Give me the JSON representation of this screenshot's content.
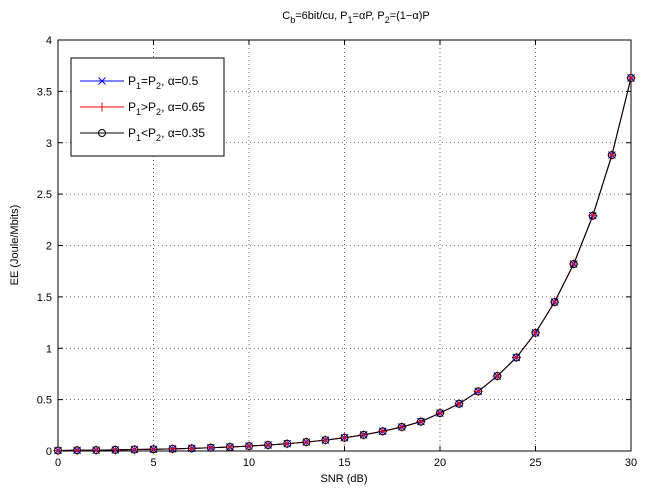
{
  "chart_data": {
    "type": "line",
    "title": "C_b=6bit/cu, P_1=αP, P_2=(1−α)P",
    "xlabel": "SNR (dB)",
    "ylabel": "EE (Joule/Mbits)",
    "xlim": [
      0,
      30
    ],
    "ylim": [
      0,
      4
    ],
    "xticks": [
      0,
      5,
      10,
      15,
      20,
      25,
      30
    ],
    "yticks": [
      0,
      0.5,
      1,
      1.5,
      2,
      2.5,
      3,
      3.5,
      4
    ],
    "grid": true,
    "legend_position": "top-left",
    "x": [
      0,
      1,
      2,
      3,
      4,
      5,
      6,
      7,
      8,
      9,
      10,
      11,
      12,
      13,
      14,
      15,
      16,
      17,
      18,
      19,
      20,
      21,
      22,
      23,
      24,
      25,
      26,
      27,
      28,
      29,
      30
    ],
    "series": [
      {
        "name": "P_1=P_2, α=0.5",
        "color": "#0000ff",
        "marker": "x",
        "values": [
          0.005,
          0.007,
          0.009,
          0.011,
          0.014,
          0.017,
          0.021,
          0.026,
          0.032,
          0.039,
          0.048,
          0.058,
          0.071,
          0.087,
          0.106,
          0.129,
          0.157,
          0.192,
          0.234,
          0.286,
          0.369,
          0.46,
          0.58,
          0.73,
          0.91,
          1.15,
          1.45,
          1.82,
          2.29,
          2.88,
          3.63
        ]
      },
      {
        "name": "P_1>P_2, α=0.65",
        "color": "#ff0000",
        "marker": "+",
        "values": [
          0.005,
          0.007,
          0.009,
          0.011,
          0.014,
          0.017,
          0.021,
          0.026,
          0.032,
          0.039,
          0.048,
          0.058,
          0.071,
          0.087,
          0.106,
          0.129,
          0.157,
          0.192,
          0.234,
          0.286,
          0.369,
          0.46,
          0.58,
          0.73,
          0.91,
          1.15,
          1.45,
          1.82,
          2.29,
          2.88,
          3.63
        ]
      },
      {
        "name": "P_1<P_2, α=0.35",
        "color": "#000000",
        "marker": "o",
        "values": [
          0.005,
          0.007,
          0.009,
          0.011,
          0.014,
          0.017,
          0.021,
          0.026,
          0.032,
          0.039,
          0.048,
          0.058,
          0.071,
          0.087,
          0.106,
          0.129,
          0.157,
          0.192,
          0.234,
          0.286,
          0.369,
          0.46,
          0.58,
          0.73,
          0.91,
          1.15,
          1.45,
          1.82,
          2.29,
          2.88,
          3.63
        ]
      }
    ]
  }
}
